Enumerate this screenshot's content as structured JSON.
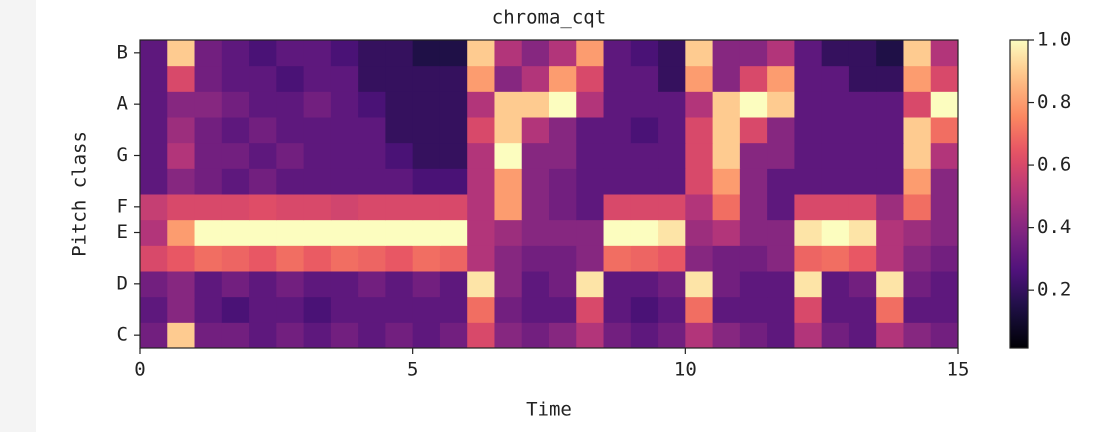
{
  "chart_data": {
    "type": "heatmap",
    "title": "chroma_cqt",
    "xlabel": "Time",
    "ylabel": "Pitch class",
    "colormap": "magma",
    "categories": [
      "C",
      null,
      "D",
      null,
      "E",
      "F",
      null,
      "G",
      null,
      "A",
      null,
      "B"
    ],
    "x_edges": [
      0,
      0.5,
      1,
      1.5,
      2,
      2.5,
      3,
      3.5,
      4,
      4.5,
      5,
      5.5,
      6,
      6.5,
      7,
      7.5,
      8,
      8.5,
      9,
      9.5,
      10,
      10.5,
      11,
      11.5,
      12,
      12.5,
      13,
      13.5,
      14,
      14.5,
      15
    ],
    "xlim": [
      0,
      15
    ],
    "xticks": [
      0,
      5,
      10,
      15
    ],
    "clim": [
      0.015,
      1
    ],
    "cticks": [
      {
        "value": 1,
        "label": "1.0"
      },
      0.8,
      0.6,
      0.4,
      0.2
    ],
    "values": [
      [
        0.35,
        0.9,
        0.35,
        0.35,
        0.3,
        0.35,
        0.3,
        0.35,
        0.3,
        0.35,
        0.3,
        0.35,
        0.6,
        0.4,
        0.35,
        0.4,
        0.5,
        0.35,
        0.3,
        0.35,
        0.5,
        0.4,
        0.35,
        0.3,
        0.5,
        0.35,
        0.3,
        0.5,
        0.4,
        0.35
      ],
      [
        0.3,
        0.4,
        0.3,
        0.25,
        0.3,
        0.3,
        0.25,
        0.3,
        0.3,
        0.3,
        0.3,
        0.3,
        0.7,
        0.35,
        0.3,
        0.3,
        0.6,
        0.3,
        0.25,
        0.3,
        0.7,
        0.3,
        0.3,
        0.3,
        0.6,
        0.3,
        0.3,
        0.7,
        0.3,
        0.3
      ],
      [
        0.35,
        0.4,
        0.3,
        0.35,
        0.3,
        0.35,
        0.3,
        0.3,
        0.35,
        0.3,
        0.35,
        0.3,
        0.95,
        0.4,
        0.3,
        0.35,
        0.95,
        0.3,
        0.3,
        0.35,
        0.95,
        0.35,
        0.3,
        0.3,
        0.95,
        0.3,
        0.35,
        0.95,
        0.35,
        0.3
      ],
      [
        0.6,
        0.65,
        0.7,
        0.68,
        0.65,
        0.7,
        0.66,
        0.7,
        0.68,
        0.65,
        0.7,
        0.68,
        0.5,
        0.4,
        0.35,
        0.35,
        0.4,
        0.7,
        0.68,
        0.65,
        0.4,
        0.35,
        0.35,
        0.4,
        0.68,
        0.7,
        0.65,
        0.5,
        0.4,
        0.35
      ],
      [
        0.5,
        0.8,
        1,
        1,
        1,
        1,
        1,
        1,
        1,
        1,
        1,
        1,
        0.5,
        0.45,
        0.4,
        0.4,
        0.4,
        1,
        1,
        0.95,
        0.45,
        0.5,
        0.4,
        0.4,
        0.95,
        1,
        0.95,
        0.5,
        0.45,
        0.4
      ],
      [
        0.55,
        0.6,
        0.6,
        0.6,
        0.62,
        0.6,
        0.6,
        0.58,
        0.6,
        0.6,
        0.6,
        0.6,
        0.5,
        0.8,
        0.4,
        0.35,
        0.3,
        0.6,
        0.6,
        0.6,
        0.5,
        0.7,
        0.4,
        0.3,
        0.6,
        0.6,
        0.6,
        0.45,
        0.7,
        0.4
      ],
      [
        0.3,
        0.4,
        0.35,
        0.3,
        0.35,
        0.3,
        0.3,
        0.3,
        0.3,
        0.3,
        0.25,
        0.25,
        0.5,
        0.8,
        0.4,
        0.35,
        0.3,
        0.3,
        0.3,
        0.3,
        0.6,
        0.8,
        0.4,
        0.3,
        0.3,
        0.3,
        0.3,
        0.3,
        0.8,
        0.4
      ],
      [
        0.3,
        0.5,
        0.35,
        0.35,
        0.3,
        0.35,
        0.3,
        0.3,
        0.3,
        0.25,
        0.2,
        0.2,
        0.5,
        1,
        0.4,
        0.4,
        0.3,
        0.3,
        0.3,
        0.3,
        0.6,
        0.9,
        0.4,
        0.4,
        0.3,
        0.3,
        0.3,
        0.3,
        0.9,
        0.5
      ],
      [
        0.3,
        0.45,
        0.35,
        0.3,
        0.35,
        0.3,
        0.3,
        0.3,
        0.3,
        0.2,
        0.2,
        0.2,
        0.6,
        0.9,
        0.5,
        0.4,
        0.3,
        0.3,
        0.25,
        0.3,
        0.6,
        0.9,
        0.6,
        0.4,
        0.3,
        0.3,
        0.3,
        0.3,
        0.9,
        0.7
      ],
      [
        0.3,
        0.4,
        0.4,
        0.35,
        0.3,
        0.3,
        0.35,
        0.3,
        0.25,
        0.2,
        0.2,
        0.2,
        0.5,
        0.9,
        0.9,
        1,
        0.5,
        0.3,
        0.3,
        0.3,
        0.5,
        0.9,
        1,
        0.9,
        0.3,
        0.3,
        0.3,
        0.3,
        0.6,
        1
      ],
      [
        0.3,
        0.6,
        0.35,
        0.3,
        0.3,
        0.25,
        0.3,
        0.3,
        0.2,
        0.2,
        0.2,
        0.2,
        0.8,
        0.4,
        0.5,
        0.8,
        0.6,
        0.3,
        0.3,
        0.2,
        0.8,
        0.4,
        0.6,
        0.8,
        0.3,
        0.3,
        0.2,
        0.2,
        0.8,
        0.6
      ],
      [
        0.3,
        0.9,
        0.35,
        0.3,
        0.25,
        0.3,
        0.3,
        0.25,
        0.2,
        0.2,
        0.15,
        0.15,
        0.9,
        0.5,
        0.4,
        0.5,
        0.8,
        0.3,
        0.25,
        0.2,
        0.9,
        0.4,
        0.4,
        0.5,
        0.3,
        0.2,
        0.2,
        0.15,
        0.9,
        0.5
      ]
    ]
  }
}
